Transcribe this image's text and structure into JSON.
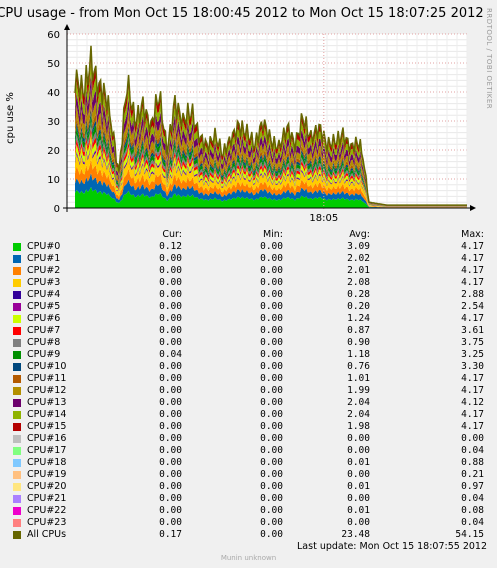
{
  "chart_data": {
    "type": "area",
    "title": "CPU usage - from Mon Oct 15 18:00:45 2012 to Mon Oct 15 18:07:25 2012",
    "ylabel": "cpu use %",
    "xlabel": "",
    "ylim": [
      0,
      60
    ],
    "yticks": [
      "0",
      "10",
      "20",
      "30",
      "40",
      "50",
      "60"
    ],
    "xticks": [
      "18:05"
    ],
    "grid": true,
    "watermark": "RRDTOOL / TOBI OETIKER",
    "legend_headers": {
      "cur": "Cur:",
      "min": "Min:",
      "avg": "Avg:",
      "max": "Max:"
    },
    "series": [
      {
        "name": "CPU#0",
        "color": "#00cc00",
        "cur": "0.12",
        "min": "0.00",
        "avg": "3.09",
        "max": "4.17"
      },
      {
        "name": "CPU#1",
        "color": "#0066b3",
        "cur": "0.00",
        "min": "0.00",
        "avg": "2.02",
        "max": "4.17"
      },
      {
        "name": "CPU#2",
        "color": "#ff8000",
        "cur": "0.00",
        "min": "0.00",
        "avg": "2.01",
        "max": "4.17"
      },
      {
        "name": "CPU#3",
        "color": "#ffcc00",
        "cur": "0.00",
        "min": "0.00",
        "avg": "2.08",
        "max": "4.17"
      },
      {
        "name": "CPU#4",
        "color": "#330099",
        "cur": "0.00",
        "min": "0.00",
        "avg": "0.28",
        "max": "2.88"
      },
      {
        "name": "CPU#5",
        "color": "#990099",
        "cur": "0.00",
        "min": "0.00",
        "avg": "0.20",
        "max": "2.54"
      },
      {
        "name": "CPU#6",
        "color": "#ccff00",
        "cur": "0.00",
        "min": "0.00",
        "avg": "1.24",
        "max": "4.17"
      },
      {
        "name": "CPU#7",
        "color": "#ff0000",
        "cur": "0.00",
        "min": "0.00",
        "avg": "0.87",
        "max": "3.61"
      },
      {
        "name": "CPU#8",
        "color": "#808080",
        "cur": "0.00",
        "min": "0.00",
        "avg": "0.90",
        "max": "3.75"
      },
      {
        "name": "CPU#9",
        "color": "#008f00",
        "cur": "0.04",
        "min": "0.00",
        "avg": "1.18",
        "max": "3.25"
      },
      {
        "name": "CPU#10",
        "color": "#00487d",
        "cur": "0.00",
        "min": "0.00",
        "avg": "0.76",
        "max": "3.30"
      },
      {
        "name": "CPU#11",
        "color": "#b35a00",
        "cur": "0.00",
        "min": "0.00",
        "avg": "1.01",
        "max": "4.17"
      },
      {
        "name": "CPU#12",
        "color": "#b38f00",
        "cur": "0.00",
        "min": "0.00",
        "avg": "1.99",
        "max": "4.17"
      },
      {
        "name": "CPU#13",
        "color": "#6b006b",
        "cur": "0.00",
        "min": "0.00",
        "avg": "2.04",
        "max": "4.12"
      },
      {
        "name": "CPU#14",
        "color": "#8fb300",
        "cur": "0.00",
        "min": "0.00",
        "avg": "2.04",
        "max": "4.17"
      },
      {
        "name": "CPU#15",
        "color": "#b30000",
        "cur": "0.00",
        "min": "0.00",
        "avg": "1.98",
        "max": "4.17"
      },
      {
        "name": "CPU#16",
        "color": "#bebebe",
        "cur": "0.00",
        "min": "0.00",
        "avg": "0.00",
        "max": "0.00"
      },
      {
        "name": "CPU#17",
        "color": "#80ff80",
        "cur": "0.00",
        "min": "0.00",
        "avg": "0.00",
        "max": "0.04"
      },
      {
        "name": "CPU#18",
        "color": "#80c9ff",
        "cur": "0.00",
        "min": "0.00",
        "avg": "0.01",
        "max": "0.88"
      },
      {
        "name": "CPU#19",
        "color": "#ffc080",
        "cur": "0.00",
        "min": "0.00",
        "avg": "0.00",
        "max": "0.21"
      },
      {
        "name": "CPU#20",
        "color": "#ffe680",
        "cur": "0.00",
        "min": "0.00",
        "avg": "0.01",
        "max": "0.97"
      },
      {
        "name": "CPU#21",
        "color": "#aa80ff",
        "cur": "0.00",
        "min": "0.00",
        "avg": "0.00",
        "max": "0.04"
      },
      {
        "name": "CPU#22",
        "color": "#ee00cc",
        "cur": "0.00",
        "min": "0.00",
        "avg": "0.01",
        "max": "0.08"
      },
      {
        "name": "CPU#23",
        "color": "#ff8080",
        "cur": "0.00",
        "min": "0.00",
        "avg": "0.00",
        "max": "0.04"
      },
      {
        "name": "All CPUs",
        "color": "#666600",
        "cur": "0.17",
        "min": "0.00",
        "avg": "23.48",
        "max": "54.15"
      }
    ],
    "stack_profile": {
      "x_fraction": [
        0.0,
        0.02,
        0.04,
        0.06,
        0.08,
        0.1,
        0.11,
        0.12,
        0.13,
        0.15,
        0.17,
        0.19,
        0.21,
        0.23,
        0.25,
        0.27,
        0.29,
        0.31,
        0.33,
        0.35,
        0.37,
        0.39,
        0.41,
        0.43,
        0.45,
        0.47,
        0.49,
        0.51,
        0.53,
        0.55,
        0.57,
        0.59,
        0.61,
        0.63,
        0.65,
        0.67,
        0.69,
        0.71,
        0.73,
        0.74,
        0.755,
        0.8,
        0.85,
        0.9,
        0.95,
        0.98,
        1.0
      ],
      "total": [
        33,
        45,
        40,
        50,
        42,
        38,
        30,
        20,
        12,
        44,
        30,
        35,
        28,
        40,
        20,
        36,
        30,
        34,
        25,
        21,
        25,
        19,
        24,
        28,
        26,
        22,
        30,
        23,
        21,
        28,
        22,
        31,
        24,
        28,
        22,
        23,
        25,
        21,
        23,
        18,
        2,
        1,
        1,
        1,
        1,
        1,
        1
      ]
    }
  },
  "last_update": {
    "label": "Last update:",
    "value": "Mon Oct 15 18:07:55 2012"
  },
  "footer": "Munin unknown"
}
